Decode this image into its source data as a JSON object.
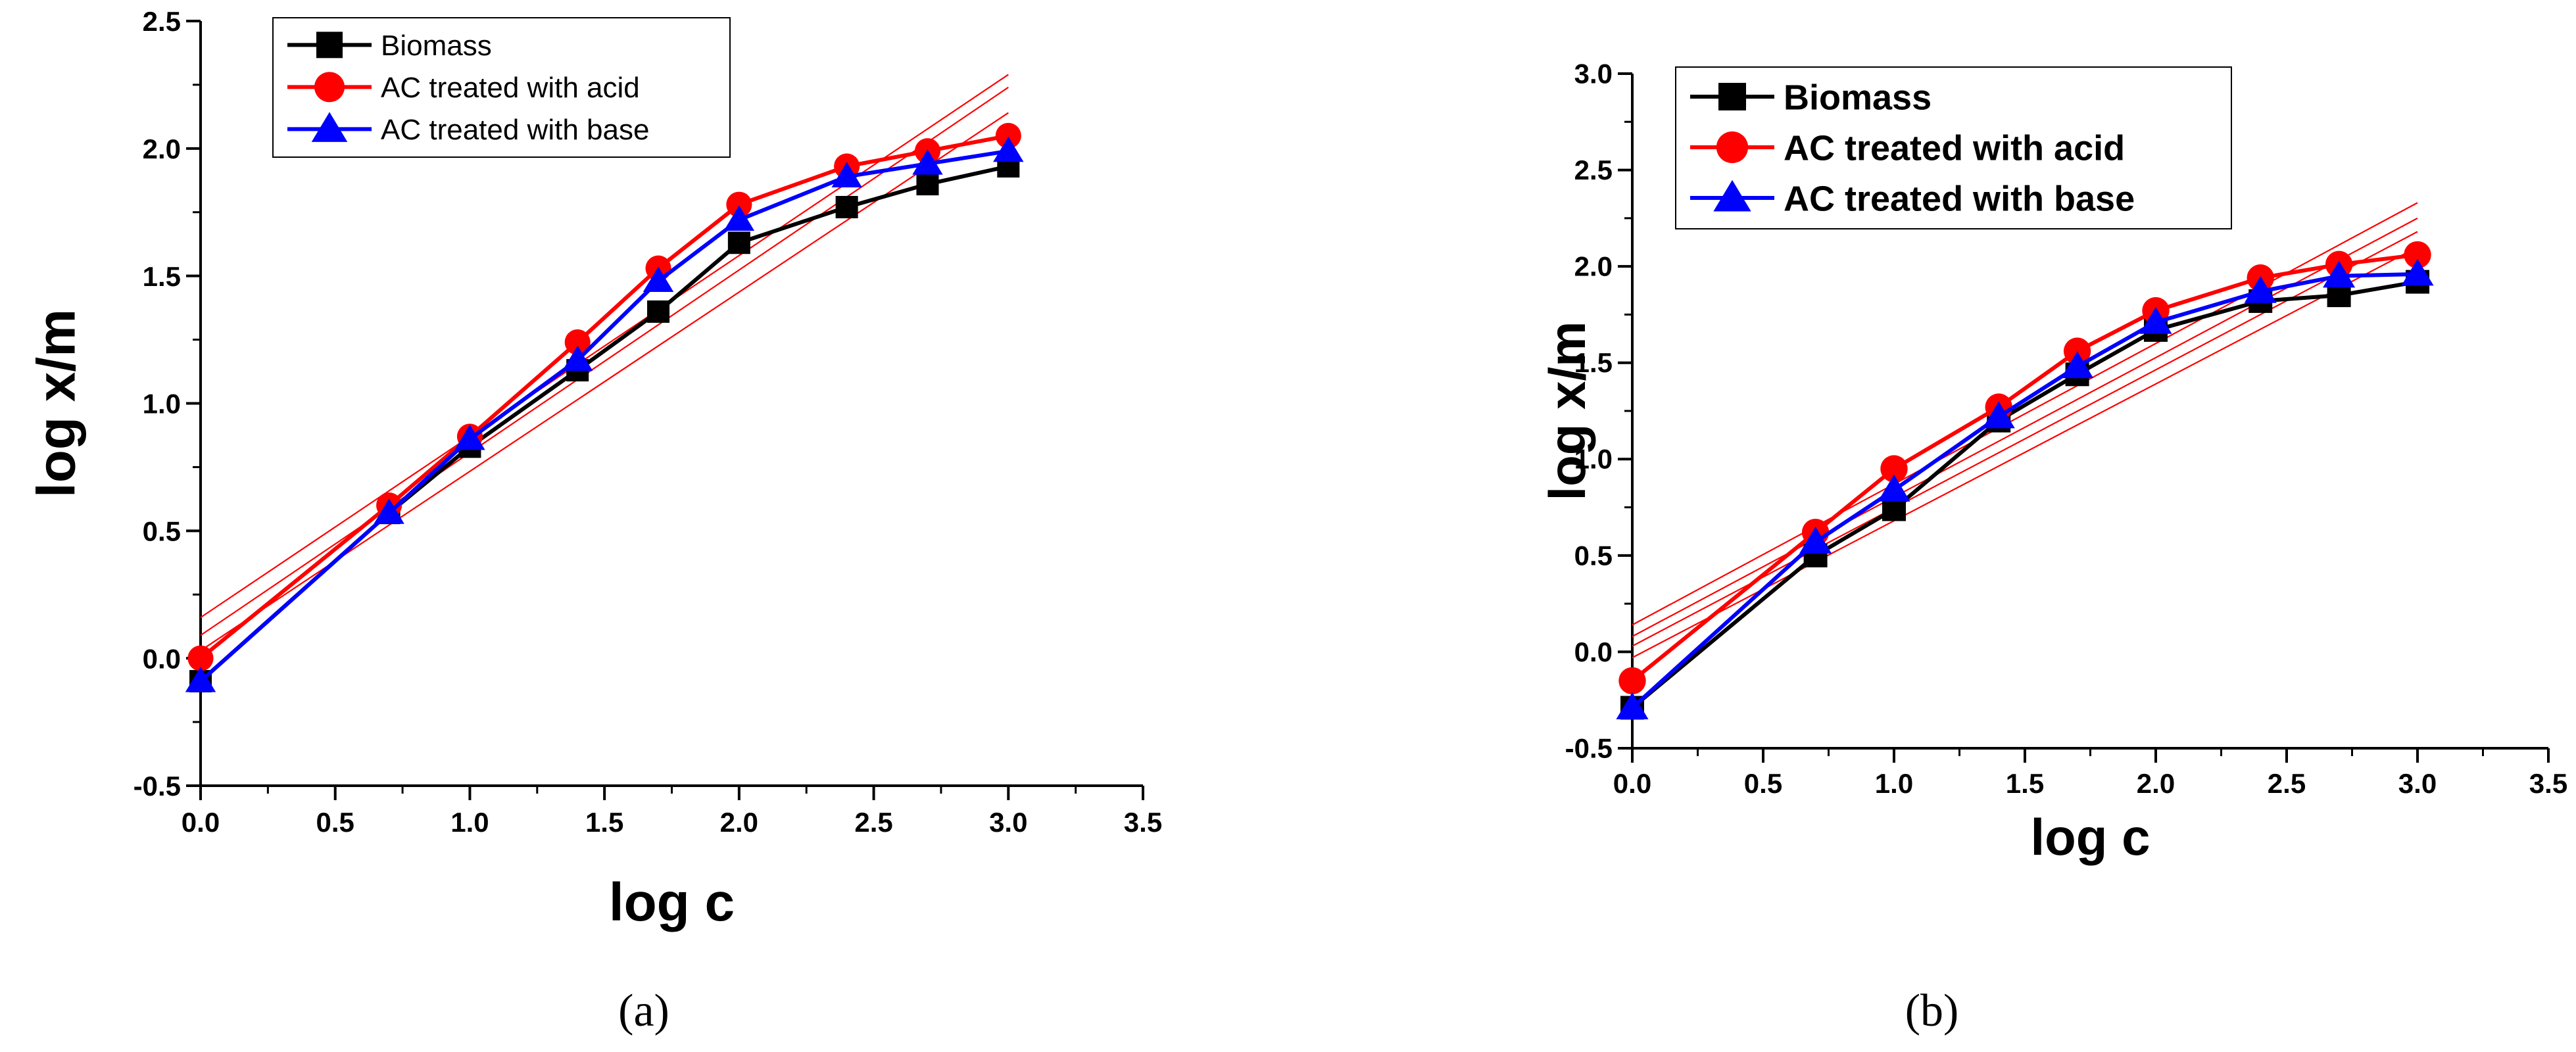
{
  "chart_data": [
    {
      "type": "line",
      "panel_label": "(a)",
      "title": "",
      "xlabel": "log c",
      "ylabel": "log x/m",
      "xlim": [
        0.0,
        3.5
      ],
      "ylim": [
        -0.5,
        2.5
      ],
      "xticks": [
        "0.0",
        "0.5",
        "1.0",
        "1.5",
        "2.0",
        "2.5",
        "3.0",
        "3.5"
      ],
      "yticks": [
        "-0.5",
        "0.0",
        "0.5",
        "1.0",
        "1.5",
        "2.0",
        "2.5"
      ],
      "legend_position": "top-left",
      "x": [
        0.0,
        0.7,
        1.0,
        1.4,
        1.7,
        2.0,
        2.4,
        2.7,
        3.0
      ],
      "series": [
        {
          "name": "Biomass",
          "color": "#000000",
          "marker": "square",
          "values": [
            -0.09,
            0.57,
            0.83,
            1.13,
            1.36,
            1.63,
            1.77,
            1.86,
            1.93
          ]
        },
        {
          "name": "AC treated with acid",
          "color": "#ff0000",
          "marker": "circle",
          "values": [
            0.0,
            0.6,
            0.87,
            1.24,
            1.53,
            1.78,
            1.93,
            1.99,
            2.05
          ]
        },
        {
          "name": "AC treated with base",
          "color": "#0000ff",
          "marker": "triangle",
          "values": [
            -0.09,
            0.57,
            0.86,
            1.17,
            1.48,
            1.72,
            1.89,
            1.94,
            1.99
          ]
        }
      ],
      "fit_lines": [
        {
          "color": "#ff0000",
          "x": [
            0.0,
            3.0
          ],
          "y": [
            0.16,
            2.29
          ]
        },
        {
          "color": "#ff0000",
          "x": [
            0.0,
            3.0
          ],
          "y": [
            0.09,
            2.24
          ]
        },
        {
          "color": "#ff0000",
          "x": [
            0.0,
            3.0
          ],
          "y": [
            0.03,
            2.14
          ]
        }
      ]
    },
    {
      "type": "line",
      "panel_label": "(b)",
      "title": "",
      "xlabel": "log c",
      "ylabel": "log x/m",
      "xlim": [
        0.0,
        3.5
      ],
      "ylim": [
        -0.5,
        3.0
      ],
      "xticks": [
        "0.0",
        "0.5",
        "1.0",
        "1.5",
        "2.0",
        "2.5",
        "3.0",
        "3.5"
      ],
      "yticks": [
        "-0.5",
        "0.0",
        "0.5",
        "1.0",
        "1.5",
        "2.0",
        "2.5",
        "3.0"
      ],
      "legend_position": "top-left",
      "x": [
        0.0,
        0.7,
        1.0,
        1.4,
        1.7,
        2.0,
        2.4,
        2.7,
        3.0
      ],
      "series": [
        {
          "name": "Biomass",
          "color": "#000000",
          "marker": "square",
          "values": [
            -0.29,
            0.5,
            0.74,
            1.2,
            1.44,
            1.67,
            1.82,
            1.85,
            1.92
          ]
        },
        {
          "name": "AC treated with acid",
          "color": "#ff0000",
          "marker": "circle",
          "values": [
            -0.15,
            0.62,
            0.95,
            1.27,
            1.56,
            1.77,
            1.94,
            2.01,
            2.06
          ]
        },
        {
          "name": "AC treated with base",
          "color": "#0000ff",
          "marker": "triangle",
          "values": [
            -0.29,
            0.57,
            0.84,
            1.22,
            1.48,
            1.71,
            1.87,
            1.95,
            1.96
          ]
        }
      ],
      "fit_lines": [
        {
          "color": "#ff0000",
          "x": [
            0.0,
            3.0
          ],
          "y": [
            0.14,
            2.33
          ]
        },
        {
          "color": "#ff0000",
          "x": [
            0.0,
            3.0
          ],
          "y": [
            0.08,
            2.25
          ]
        },
        {
          "color": "#ff0000",
          "x": [
            0.0,
            3.0
          ],
          "y": [
            0.03,
            2.18
          ]
        },
        {
          "color": "#ff0000",
          "x": [
            0.0,
            3.0
          ],
          "y": [
            -0.03,
            2.1
          ]
        }
      ]
    }
  ]
}
